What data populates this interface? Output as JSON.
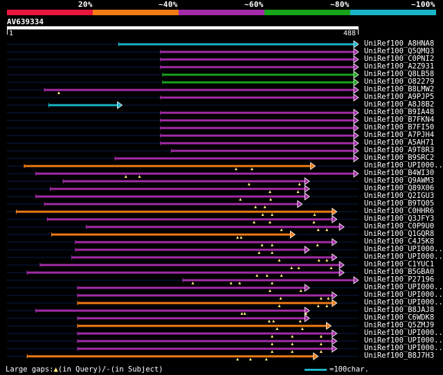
{
  "colors": {
    "red": "#e8163c",
    "orange": "#f07c16",
    "purple": "#a42ca8",
    "green": "#17a41c",
    "cyan": "#1ab4c8",
    "query": "#ffffff",
    "background": "#000000",
    "gap_marker": "#ffe680",
    "thin_line": "#0c1c48"
  },
  "legend": {
    "segments": [
      {
        "label": "20%",
        "color": "#e8163c"
      },
      {
        "label": "~40%",
        "color": "#f07c16"
      },
      {
        "label": "~60%",
        "color": "#a42ca8"
      },
      {
        "label": "~80%",
        "color": "#17a41c"
      },
      {
        "label": "~100%",
        "color": "#1ab4c8"
      }
    ]
  },
  "query": {
    "id": "AV639334",
    "start": "1",
    "end": "488",
    "length": 488
  },
  "hits": [
    {
      "label": "UniRef100_A8HNA8",
      "color": "cyan",
      "start": 155,
      "end": 488,
      "gaps": []
    },
    {
      "label": "UniRef100_Q5QMQ3",
      "color": "purple",
      "start": 213,
      "end": 488,
      "gaps": []
    },
    {
      "label": "UniRef100_C0PNI2",
      "color": "purple",
      "start": 213,
      "end": 488,
      "gaps": []
    },
    {
      "label": "UniRef100_A2Z931",
      "color": "purple",
      "start": 213,
      "end": 488,
      "gaps": []
    },
    {
      "label": "UniRef100_Q8LB58",
      "color": "green",
      "start": 216,
      "end": 488,
      "gaps": []
    },
    {
      "label": "UniRef100_O82279",
      "color": "green",
      "start": 216,
      "end": 488,
      "gaps": []
    },
    {
      "label": "UniRef100_B8LMW2",
      "color": "purple",
      "start": 52,
      "end": 488,
      "gaps": [
        {
          "type": "query",
          "pos": 72
        }
      ]
    },
    {
      "label": "UniRef100_A9PJP5",
      "color": "purple",
      "start": 213,
      "end": 488,
      "gaps": []
    },
    {
      "label": "UniRef100_A8J8B2",
      "color": "cyan",
      "start": 58,
      "end": 160,
      "gaps": []
    },
    {
      "label": "UniRef100_B9IA48",
      "color": "purple",
      "start": 213,
      "end": 488,
      "gaps": []
    },
    {
      "label": "UniRef100_B7FKN4",
      "color": "purple",
      "start": 213,
      "end": 488,
      "gaps": []
    },
    {
      "label": "UniRef100_B7FI50",
      "color": "purple",
      "start": 213,
      "end": 488,
      "gaps": []
    },
    {
      "label": "UniRef100_A7PJH4",
      "color": "purple",
      "start": 213,
      "end": 488,
      "gaps": []
    },
    {
      "label": "UniRef100_A5AH71",
      "color": "purple",
      "start": 213,
      "end": 488,
      "gaps": []
    },
    {
      "label": "UniRef100_A9T8R3",
      "color": "purple",
      "start": 228,
      "end": 488,
      "gaps": []
    },
    {
      "label": "UniRef100_B9SRC2",
      "color": "purple",
      "start": 150,
      "end": 488,
      "gaps": []
    },
    {
      "label": "UniRef100_UPI000..",
      "color": "orange",
      "start": 24,
      "end": 428,
      "gaps": [
        {
          "type": "query",
          "pos": 318
        },
        {
          "type": "query",
          "pos": 340
        }
      ]
    },
    {
      "label": "UniRef100_B4WI30",
      "color": "purple",
      "start": 40,
      "end": 488,
      "gaps": [
        {
          "type": "query",
          "pos": 165
        },
        {
          "type": "query",
          "pos": 184
        }
      ]
    },
    {
      "label": "UniRef100_Q9AWM3",
      "color": "purple",
      "start": 78,
      "end": 420,
      "gaps": [
        {
          "type": "query",
          "pos": 336
        },
        {
          "type": "query",
          "pos": 406
        }
      ]
    },
    {
      "label": "UniRef100_Q89X06",
      "color": "purple",
      "start": 60,
      "end": 420,
      "gaps": [
        {
          "type": "query",
          "pos": 365
        },
        {
          "type": "query",
          "pos": 404
        }
      ]
    },
    {
      "label": "UniRef100_Q2IGU3",
      "color": "purple",
      "start": 40,
      "end": 420,
      "gaps": [
        {
          "type": "query",
          "pos": 324
        },
        {
          "type": "query",
          "pos": 366
        }
      ]
    },
    {
      "label": "UniRef100_B9TQ05",
      "color": "purple",
      "start": 52,
      "end": 410,
      "gaps": [
        {
          "type": "query",
          "pos": 345
        },
        {
          "type": "query",
          "pos": 358
        }
      ]
    },
    {
      "label": "UniRef100_C0HHR6",
      "color": "orange",
      "start": 13,
      "end": 458,
      "gaps": [
        {
          "type": "query",
          "pos": 355
        },
        {
          "type": "query",
          "pos": 368
        },
        {
          "type": "query",
          "pos": 427
        }
      ]
    },
    {
      "label": "UniRef100_Q3JFY3",
      "color": "purple",
      "start": 56,
      "end": 458,
      "gaps": [
        {
          "type": "query",
          "pos": 343
        },
        {
          "type": "query",
          "pos": 365
        },
        {
          "type": "query",
          "pos": 426
        }
      ]
    },
    {
      "label": "UniRef100_C0P9U0",
      "color": "purple",
      "start": 110,
      "end": 468,
      "gaps": [
        {
          "type": "query",
          "pos": 381
        },
        {
          "type": "query",
          "pos": 432
        },
        {
          "type": "query",
          "pos": 444
        }
      ]
    },
    {
      "label": "UniRef100_Q1GQR8",
      "color": "orange",
      "start": 62,
      "end": 400,
      "gaps": [
        {
          "type": "query",
          "pos": 320
        },
        {
          "type": "query",
          "pos": 325
        }
      ]
    },
    {
      "label": "UniRef100_C4J5K8",
      "color": "purple",
      "start": 95,
      "end": 458,
      "gaps": [
        {
          "type": "query",
          "pos": 354
        },
        {
          "type": "query",
          "pos": 368
        },
        {
          "type": "query",
          "pos": 431
        }
      ]
    },
    {
      "label": "UniRef100_UPI000..",
      "color": "purple",
      "start": 95,
      "end": 420,
      "gaps": [
        {
          "type": "query",
          "pos": 350
        },
        {
          "type": "query",
          "pos": 368
        }
      ]
    },
    {
      "label": "UniRef100_UPI000..",
      "color": "purple",
      "start": 90,
      "end": 458,
      "gaps": [
        {
          "type": "query",
          "pos": 378
        },
        {
          "type": "query",
          "pos": 433
        },
        {
          "type": "query",
          "pos": 444
        }
      ]
    },
    {
      "label": "UniRef100_C1YUC1",
      "color": "purple",
      "start": 46,
      "end": 468,
      "gaps": [
        {
          "type": "query",
          "pos": 395
        },
        {
          "type": "query",
          "pos": 405
        },
        {
          "type": "query",
          "pos": 450
        }
      ]
    },
    {
      "label": "UniRef100_B5GBA0",
      "color": "purple",
      "start": 28,
      "end": 468,
      "gaps": [
        {
          "type": "query",
          "pos": 347
        },
        {
          "type": "query",
          "pos": 361
        },
        {
          "type": "query",
          "pos": 381
        }
      ]
    },
    {
      "label": "UniRef100_P27196",
      "color": "purple",
      "start": 244,
      "end": 488,
      "gaps": [
        {
          "type": "query",
          "pos": 258
        },
        {
          "type": "query",
          "pos": 311
        },
        {
          "type": "query",
          "pos": 323
        },
        {
          "type": "query",
          "pos": 368
        }
      ]
    },
    {
      "label": "UniRef100_UPI000..",
      "color": "purple",
      "start": 98,
      "end": 420,
      "gaps": [
        {
          "type": "query",
          "pos": 365
        },
        {
          "type": "query",
          "pos": 408
        }
      ]
    },
    {
      "label": "UniRef100_UPI000..",
      "color": "purple",
      "start": 98,
      "end": 458,
      "gaps": [
        {
          "type": "query",
          "pos": 380
        },
        {
          "type": "query",
          "pos": 436
        },
        {
          "type": "query",
          "pos": 446
        }
      ]
    },
    {
      "label": "UniRef100_UPI000..",
      "color": "orange",
      "start": 98,
      "end": 458,
      "gaps": [
        {
          "type": "query",
          "pos": 378
        },
        {
          "type": "query",
          "pos": 432
        },
        {
          "type": "query",
          "pos": 444
        }
      ]
    },
    {
      "label": "UniRef100_B8JAJ8",
      "color": "purple",
      "start": 40,
      "end": 420,
      "gaps": [
        {
          "type": "query",
          "pos": 326
        },
        {
          "type": "query",
          "pos": 330
        },
        {
          "type": "query",
          "pos": 415
        }
      ]
    },
    {
      "label": "UniRef100_C6WDK8",
      "color": "purple",
      "start": 98,
      "end": 420,
      "gaps": [
        {
          "type": "query",
          "pos": 364
        },
        {
          "type": "query",
          "pos": 370
        },
        {
          "type": "query",
          "pos": 407
        }
      ]
    },
    {
      "label": "UniRef100_Q5ZMJ9",
      "color": "orange",
      "start": 98,
      "end": 450,
      "gaps": [
        {
          "type": "query",
          "pos": 375
        },
        {
          "type": "query",
          "pos": 410
        }
      ]
    },
    {
      "label": "UniRef100_UPI000..",
      "color": "purple",
      "start": 98,
      "end": 458,
      "gaps": [
        {
          "type": "query",
          "pos": 368
        },
        {
          "type": "query",
          "pos": 396
        },
        {
          "type": "query",
          "pos": 436
        }
      ]
    },
    {
      "label": "UniRef100_UPI000..",
      "color": "purple",
      "start": 98,
      "end": 458,
      "gaps": [
        {
          "type": "query",
          "pos": 368
        },
        {
          "type": "query",
          "pos": 396
        },
        {
          "type": "query",
          "pos": 436
        }
      ]
    },
    {
      "label": "UniRef100_UPI000..",
      "color": "purple",
      "start": 98,
      "end": 458,
      "gaps": [
        {
          "type": "query",
          "pos": 368
        },
        {
          "type": "query",
          "pos": 396
        },
        {
          "type": "query",
          "pos": 436
        }
      ]
    },
    {
      "label": "UniRef100_B8J7H3",
      "color": "orange",
      "start": 28,
      "end": 432,
      "gaps": [
        {
          "type": "query",
          "pos": 320
        },
        {
          "type": "query",
          "pos": 338
        },
        {
          "type": "query",
          "pos": 360
        }
      ]
    }
  ],
  "footer": {
    "large_gaps_label": "Large gaps:",
    "query_gap_text": "(in Query)/",
    "subject_gap_symbol": "-",
    "subject_gap_text": "(in Subject)",
    "scale_text": "=100char."
  }
}
